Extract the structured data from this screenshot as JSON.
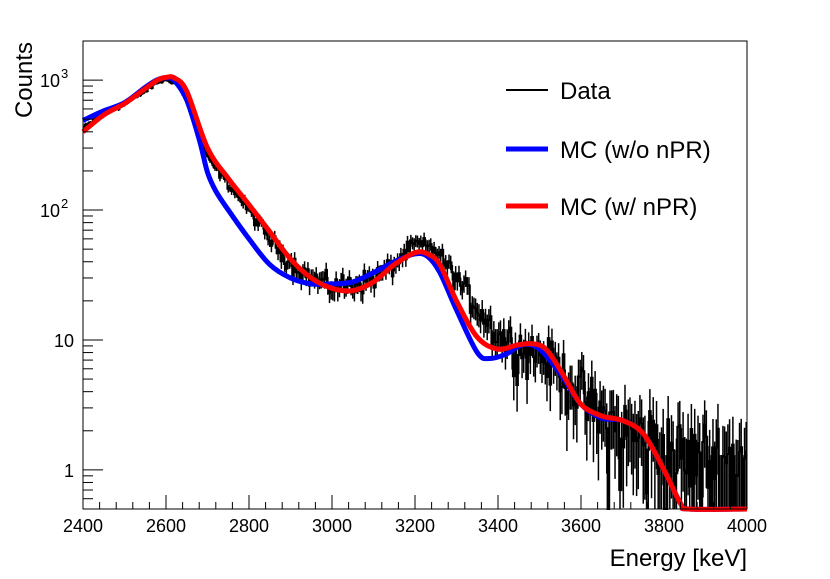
{
  "chart_data": {
    "type": "line",
    "xlabel": "Energy [keV]",
    "ylabel": "Counts",
    "xlim": [
      2400,
      4000
    ],
    "ylim": [
      0.5,
      2000
    ],
    "yscale": "log",
    "x_ticks": [
      {
        "value": 2400,
        "label": "2400"
      },
      {
        "value": 2600,
        "label": "2600"
      },
      {
        "value": 2800,
        "label": "2800"
      },
      {
        "value": 3000,
        "label": "3000"
      },
      {
        "value": 3200,
        "label": "3200"
      },
      {
        "value": 3400,
        "label": "3400"
      },
      {
        "value": 3600,
        "label": "3600"
      },
      {
        "value": 3800,
        "label": "3800"
      },
      {
        "value": 4000,
        "label": "4000"
      }
    ],
    "y_ticks": [
      {
        "value": 1,
        "label": "1"
      },
      {
        "value": 10,
        "label": "10"
      },
      {
        "value": 100,
        "label": "10",
        "sup": "2"
      },
      {
        "value": 1000,
        "label": "10",
        "sup": "3"
      }
    ],
    "legend_position": "top-right",
    "series": [
      {
        "name": "Data",
        "color": "#000000",
        "style": "histogram",
        "x": [
          2400,
          2450,
          2500,
          2550,
          2580,
          2600,
          2625,
          2650,
          2700,
          2750,
          2800,
          2850,
          2900,
          2950,
          3000,
          3050,
          3100,
          3150,
          3200,
          3250,
          3300,
          3350,
          3400,
          3450,
          3500,
          3550,
          3600,
          3650,
          3700,
          3750,
          3800,
          3850,
          3900,
          3950,
          4000
        ],
        "values": [
          420,
          560,
          650,
          820,
          960,
          1000,
          960,
          700,
          250,
          160,
          100,
          60,
          40,
          30,
          26,
          27,
          30,
          38,
          55,
          50,
          30,
          18,
          11,
          9,
          8,
          6,
          4,
          2.5,
          2,
          1.8,
          1.5,
          1.2,
          1.2,
          1.2,
          1.2
        ]
      },
      {
        "name": "MC (w/o nPR)",
        "color": "#0000ff",
        "style": "line",
        "x": [
          2400,
          2450,
          2500,
          2550,
          2580,
          2600,
          2620,
          2650,
          2680,
          2700,
          2720,
          2750,
          2800,
          2850,
          2900,
          2950,
          3000,
          3050,
          3100,
          3150,
          3200,
          3230,
          3260,
          3300,
          3350,
          3380,
          3420,
          3460,
          3500,
          3550,
          3600,
          3650,
          3700,
          3750,
          3800,
          3840,
          3860,
          4000
        ],
        "values": [
          490,
          580,
          670,
          880,
          1010,
          1040,
          990,
          700,
          350,
          195,
          140,
          100,
          60,
          38,
          30,
          27,
          27,
          28,
          33,
          40,
          46,
          44,
          33,
          17,
          8,
          7.2,
          7.8,
          9.2,
          8.5,
          5.5,
          3.2,
          2.5,
          2.4,
          1.9,
          1.0,
          0.55,
          0.5,
          0.5
        ]
      },
      {
        "name": "MC (w/ nPR)",
        "color": "#ff0000",
        "style": "line",
        "x": [
          2400,
          2450,
          2500,
          2550,
          2580,
          2600,
          2620,
          2650,
          2700,
          2750,
          2800,
          2850,
          2900,
          2950,
          3000,
          3050,
          3100,
          3150,
          3200,
          3230,
          3260,
          3300,
          3350,
          3400,
          3450,
          3490,
          3520,
          3560,
          3600,
          3650,
          3700,
          3750,
          3800,
          3840,
          3860,
          4000
        ],
        "values": [
          400,
          540,
          660,
          860,
          1000,
          1050,
          1040,
          820,
          300,
          175,
          110,
          68,
          42,
          30,
          25,
          24,
          28,
          38,
          47,
          46,
          38,
          20,
          10.5,
          8.5,
          9.2,
          9.3,
          8.2,
          5.2,
          3.2,
          2.6,
          2.4,
          1.9,
          1.0,
          0.55,
          0.5,
          0.5
        ]
      }
    ]
  }
}
